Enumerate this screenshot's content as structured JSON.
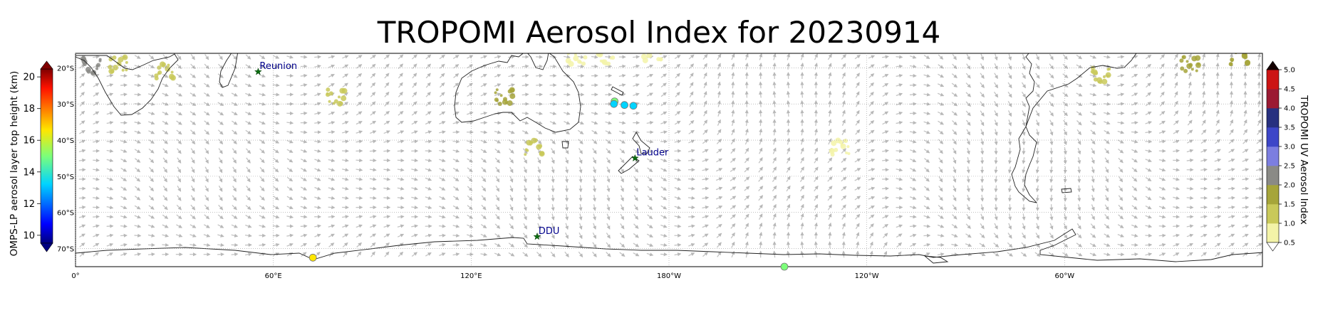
{
  "title": "TROPOMI Aerosol Index for 20230914",
  "left_colorbar": {
    "label": "OMPS-LP aerosol layer top height (km)",
    "ticks": [
      "10",
      "12",
      "14",
      "16",
      "18",
      "20"
    ],
    "range_km": [
      9.5,
      20.5
    ],
    "colormap": "jet",
    "extend": "both"
  },
  "right_colorbar": {
    "label": "TROPOMI UV Aerosol Index",
    "ticks": [
      "0.5",
      "1.0",
      "1.5",
      "2.0",
      "2.5",
      "3.0",
      "3.5",
      "4.0",
      "4.5",
      "5.0"
    ],
    "range": [
      0.5,
      5.0
    ],
    "colors": [
      "#ffffff",
      "#f3f3a8",
      "#c9c95a",
      "#a6a53a",
      "#8a8a86",
      "#7c7ee0",
      "#3d46c8",
      "#27307f",
      "#9b1a33",
      "#cc1414",
      "#140000"
    ],
    "extend": "both"
  },
  "map": {
    "lon_range": [
      0,
      360
    ],
    "lat_range": [
      -75,
      -16
    ],
    "lon_ticks": [
      {
        "lon": 0,
        "label": "0°"
      },
      {
        "lon": 60,
        "label": "60°E"
      },
      {
        "lon": 120,
        "label": "120°E"
      },
      {
        "lon": 180,
        "label": "180°W"
      },
      {
        "lon": 240,
        "label": "120°W"
      },
      {
        "lon": 300,
        "label": "60°W"
      }
    ],
    "lat_ticks": [
      {
        "lat": -20,
        "label": "20°S"
      },
      {
        "lat": -30,
        "label": "30°S"
      },
      {
        "lat": -40,
        "label": "40°S"
      },
      {
        "lat": -50,
        "label": "50°S"
      },
      {
        "lat": -60,
        "label": "60°S"
      },
      {
        "lat": -70,
        "label": "70°S"
      }
    ],
    "wind_vectors": "grey arrows",
    "stations": [
      {
        "name": "Reunion",
        "lon": 55.4,
        "lat": -21.1
      },
      {
        "name": "Lauder",
        "lon": 169.7,
        "lat": -45.0
      },
      {
        "name": "DDU",
        "lon": 140.0,
        "lat": -66.7
      }
    ],
    "omps_points": [
      {
        "lon": 163.5,
        "lat": -29.3,
        "height_km": 13.3
      },
      {
        "lon": 163.3,
        "lat": -30.0,
        "height_km": 12.2
      },
      {
        "lon": 166.5,
        "lat": -30.3,
        "height_km": 12.0
      },
      {
        "lon": 169.2,
        "lat": -30.5,
        "height_km": 12.8
      },
      {
        "lon": 72.0,
        "lat": -72.5,
        "height_km": 16.6
      },
      {
        "lon": 215.0,
        "lat": -75.0,
        "height_km": 15.0
      }
    ],
    "aerosol_patches": [
      {
        "lon": 5,
        "lat": -19.5,
        "ai": 2.3
      },
      {
        "lon": 13,
        "lat": -19,
        "ai": 1.2
      },
      {
        "lon": 27,
        "lat": -21,
        "ai": 1.0
      },
      {
        "lon": 79,
        "lat": -28,
        "ai": 1.2
      },
      {
        "lon": 130,
        "lat": -28,
        "ai": 1.6
      },
      {
        "lon": 139,
        "lat": -42,
        "ai": 1.1
      },
      {
        "lon": 152,
        "lat": -17,
        "ai": 0.9
      },
      {
        "lon": 161,
        "lat": -17,
        "ai": 0.9
      },
      {
        "lon": 175,
        "lat": -16,
        "ai": 0.9
      },
      {
        "lon": 232,
        "lat": -42,
        "ai": 0.8
      },
      {
        "lon": 311,
        "lat": -22,
        "ai": 1.1
      },
      {
        "lon": 338,
        "lat": -19,
        "ai": 1.5
      },
      {
        "lon": 353,
        "lat": -17,
        "ai": 1.6
      }
    ]
  }
}
